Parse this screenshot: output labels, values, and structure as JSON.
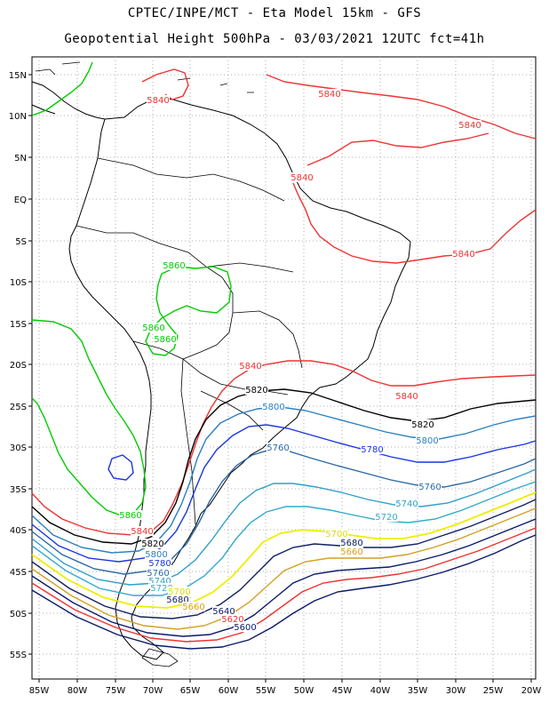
{
  "title_line1": "CPTEC/INPE/MCT -  Eta Model 15km - GFS",
  "title_line2": "Geopotential Height 500hPa - 03/03/2021 12UTC fct=41h",
  "lat_ticks": [
    "15N",
    "10N",
    "5N",
    "EQ",
    "5S",
    "10S",
    "15S",
    "20S",
    "25S",
    "30S",
    "35S",
    "40S",
    "45S",
    "50S",
    "55S"
  ],
  "lon_ticks": [
    "85W",
    "80W",
    "75W",
    "70W",
    "65W",
    "60W",
    "55W",
    "50W",
    "45W",
    "40W",
    "35W",
    "30W",
    "25W",
    "20W"
  ],
  "contours": [
    {
      "value": "5860",
      "color": "#00cc00"
    },
    {
      "value": "5840",
      "color": "#ee3333"
    },
    {
      "value": "5820",
      "color": "#000000"
    },
    {
      "value": "5800",
      "color": "#2a7fbf"
    },
    {
      "value": "5780",
      "color": "#1a35e0"
    },
    {
      "value": "5760",
      "color": "#2a6aa8"
    },
    {
      "value": "5740",
      "color": "#2ea0c8"
    },
    {
      "value": "5720",
      "color": "#33aacc"
    },
    {
      "value": "5700",
      "color": "#eeee00"
    },
    {
      "value": "5680",
      "color": "#102060"
    },
    {
      "value": "5660",
      "color": "#d4a020"
    },
    {
      "value": "5640",
      "color": "#0a1a6a"
    },
    {
      "value": "5620",
      "color": "#ee3333"
    },
    {
      "value": "5600",
      "color": "#0a1a6a"
    }
  ],
  "labels": [
    {
      "text": "5840",
      "color": "#ee3333"
    },
    {
      "text": "5840",
      "color": "#ee3333"
    },
    {
      "text": "5840",
      "color": "#ee3333"
    },
    {
      "text": "5840",
      "color": "#ee3333"
    },
    {
      "text": "5840",
      "color": "#ee3333"
    },
    {
      "text": "5840",
      "color": "#ee3333"
    },
    {
      "text": "5840",
      "color": "#ee3333"
    },
    {
      "text": "5840",
      "color": "#ee3333"
    },
    {
      "text": "5860",
      "color": "#00cc00"
    },
    {
      "text": "5860",
      "color": "#00cc00"
    },
    {
      "text": "5860",
      "color": "#00cc00"
    },
    {
      "text": "5860",
      "color": "#00cc00"
    },
    {
      "text": "5820",
      "color": "#000000"
    },
    {
      "text": "5820",
      "color": "#000000"
    },
    {
      "text": "5820",
      "color": "#000000"
    },
    {
      "text": "5800",
      "color": "#2a7fbf"
    },
    {
      "text": "5800",
      "color": "#2a7fbf"
    },
    {
      "text": "5800",
      "color": "#2a7fbf"
    },
    {
      "text": "5780",
      "color": "#1a35e0"
    },
    {
      "text": "5780",
      "color": "#1a35e0"
    },
    {
      "text": "5760",
      "color": "#2a6aa8"
    },
    {
      "text": "5760",
      "color": "#2a6aa8"
    },
    {
      "text": "5760",
      "color": "#2a6aa8"
    },
    {
      "text": "5740",
      "color": "#2ea0c8"
    },
    {
      "text": "5740",
      "color": "#2ea0c8"
    },
    {
      "text": "5720",
      "color": "#33aacc"
    },
    {
      "text": "5720",
      "color": "#33aacc"
    },
    {
      "text": "5700",
      "color": "#dddd00"
    },
    {
      "text": "5700",
      "color": "#dddd00"
    },
    {
      "text": "5680",
      "color": "#102060"
    },
    {
      "text": "5680",
      "color": "#102060"
    },
    {
      "text": "5660",
      "color": "#d4a020"
    },
    {
      "text": "5660",
      "color": "#d4a020"
    },
    {
      "text": "5640",
      "color": "#0a1a6a"
    },
    {
      "text": "5620",
      "color": "#ee3333"
    },
    {
      "text": "5600",
      "color": "#0a1a6a"
    }
  ]
}
